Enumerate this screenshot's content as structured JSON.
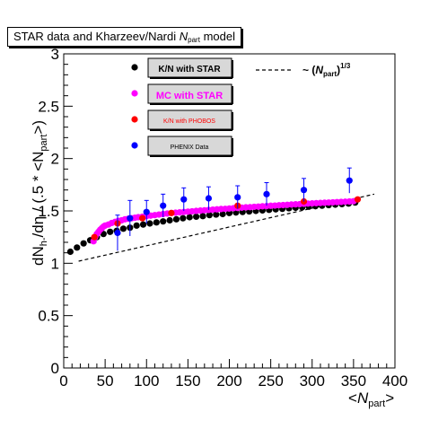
{
  "chart_data": {
    "type": "scatter",
    "title": {
      "prefix": "STAR data and Kharzeev/Nardi",
      "var": "N",
      "sub": "part",
      "suffix": "model"
    },
    "xlabel": {
      "lt": "<",
      "var": "N",
      "sub": "part",
      "gt": ">"
    },
    "ylabel": {
      "text": "dN",
      "sub": "h-",
      "mid": "/dη / (.5 * <N",
      "sub2": "part",
      "end": ">)"
    },
    "xlim": [
      0,
      400
    ],
    "ylim": [
      0,
      3
    ],
    "xticks": [
      0,
      50,
      100,
      150,
      200,
      250,
      300,
      350,
      400
    ],
    "yticks": [
      0,
      0.5,
      1,
      1.5,
      2,
      2.5,
      3
    ],
    "xtick_labels": [
      "0",
      "50",
      "100",
      "150",
      "200",
      "250",
      "300",
      "350",
      "400"
    ],
    "ytick_labels": [
      "0",
      "0.5",
      "1",
      "1.5",
      "2",
      "2.5",
      "3"
    ],
    "grid": false,
    "legend_placement": "top",
    "series": [
      {
        "name": "K/N with STAR",
        "color": "#000000",
        "x": [
          8,
          16,
          24,
          32,
          40,
          48,
          56,
          64,
          72,
          80,
          88,
          96,
          104,
          112,
          120,
          128,
          136,
          144,
          152,
          160,
          168,
          176,
          184,
          192,
          200,
          208,
          216,
          224,
          232,
          240,
          248,
          256,
          264,
          272,
          280,
          288,
          296,
          304,
          312,
          320,
          328,
          336,
          344,
          352
        ],
        "y": [
          1.11,
          1.15,
          1.19,
          1.22,
          1.25,
          1.28,
          1.3,
          1.31,
          1.33,
          1.34,
          1.36,
          1.37,
          1.38,
          1.39,
          1.4,
          1.41,
          1.42,
          1.43,
          1.44,
          1.445,
          1.45,
          1.46,
          1.465,
          1.47,
          1.48,
          1.485,
          1.49,
          1.495,
          1.5,
          1.505,
          1.51,
          1.515,
          1.52,
          1.525,
          1.53,
          1.535,
          1.54,
          1.545,
          1.55,
          1.555,
          1.56,
          1.565,
          1.57,
          1.58
        ]
      },
      {
        "name": "MC with STAR",
        "color": "#ff00ff",
        "x": [
          36,
          38,
          40,
          42,
          44,
          46,
          48,
          50,
          54,
          58,
          62,
          66,
          70,
          74,
          78,
          82,
          86,
          90,
          95,
          100,
          105,
          110,
          115,
          120,
          125,
          130,
          135,
          140,
          145,
          150,
          155,
          160,
          165,
          170,
          175,
          180,
          185,
          190,
          195,
          200,
          205,
          210,
          215,
          220,
          225,
          230,
          235,
          240,
          245,
          250,
          255,
          260,
          265,
          270,
          275,
          280,
          285,
          290,
          295,
          300,
          305,
          310,
          315,
          320,
          325,
          330,
          335,
          340,
          345,
          350
        ],
        "y": [
          1.21,
          1.25,
          1.28,
          1.3,
          1.32,
          1.335,
          1.35,
          1.36,
          1.37,
          1.385,
          1.395,
          1.405,
          1.41,
          1.42,
          1.425,
          1.43,
          1.435,
          1.44,
          1.445,
          1.45,
          1.455,
          1.46,
          1.465,
          1.47,
          1.475,
          1.48,
          1.483,
          1.486,
          1.49,
          1.493,
          1.496,
          1.5,
          1.503,
          1.506,
          1.509,
          1.512,
          1.515,
          1.518,
          1.52,
          1.523,
          1.526,
          1.528,
          1.531,
          1.534,
          1.536,
          1.539,
          1.541,
          1.544,
          1.546,
          1.549,
          1.551,
          1.554,
          1.556,
          1.558,
          1.561,
          1.563,
          1.565,
          1.568,
          1.57,
          1.572,
          1.574,
          1.576,
          1.578,
          1.58,
          1.582,
          1.584,
          1.586,
          1.588,
          1.59,
          1.592
        ]
      },
      {
        "name": "K/N with PHOBOS",
        "color": "#ff0000",
        "x": [
          37,
          65,
          95,
          130,
          210,
          290,
          355
        ],
        "y": [
          1.25,
          1.38,
          1.43,
          1.48,
          1.55,
          1.59,
          1.61
        ]
      },
      {
        "name": "PHENIX Data",
        "color": "#0000ff",
        "x": [
          65,
          80,
          100,
          120,
          145,
          175,
          210,
          245,
          290,
          345
        ],
        "y": [
          1.29,
          1.43,
          1.49,
          1.55,
          1.61,
          1.62,
          1.63,
          1.66,
          1.7,
          1.79
        ],
        "yerr": [
          0.17,
          0.17,
          0.11,
          0.11,
          0.11,
          0.11,
          0.11,
          0.11,
          0.11,
          0.12
        ]
      }
    ],
    "reference_curve": {
      "label": {
        "pre": "~ (",
        "var": "N",
        "sub": "part",
        "close": ")",
        "sup": "1/3"
      },
      "style": "dashed",
      "color": "#000000",
      "x0": 18,
      "y0": 1.02,
      "x1": 375,
      "y1": 1.66
    }
  }
}
